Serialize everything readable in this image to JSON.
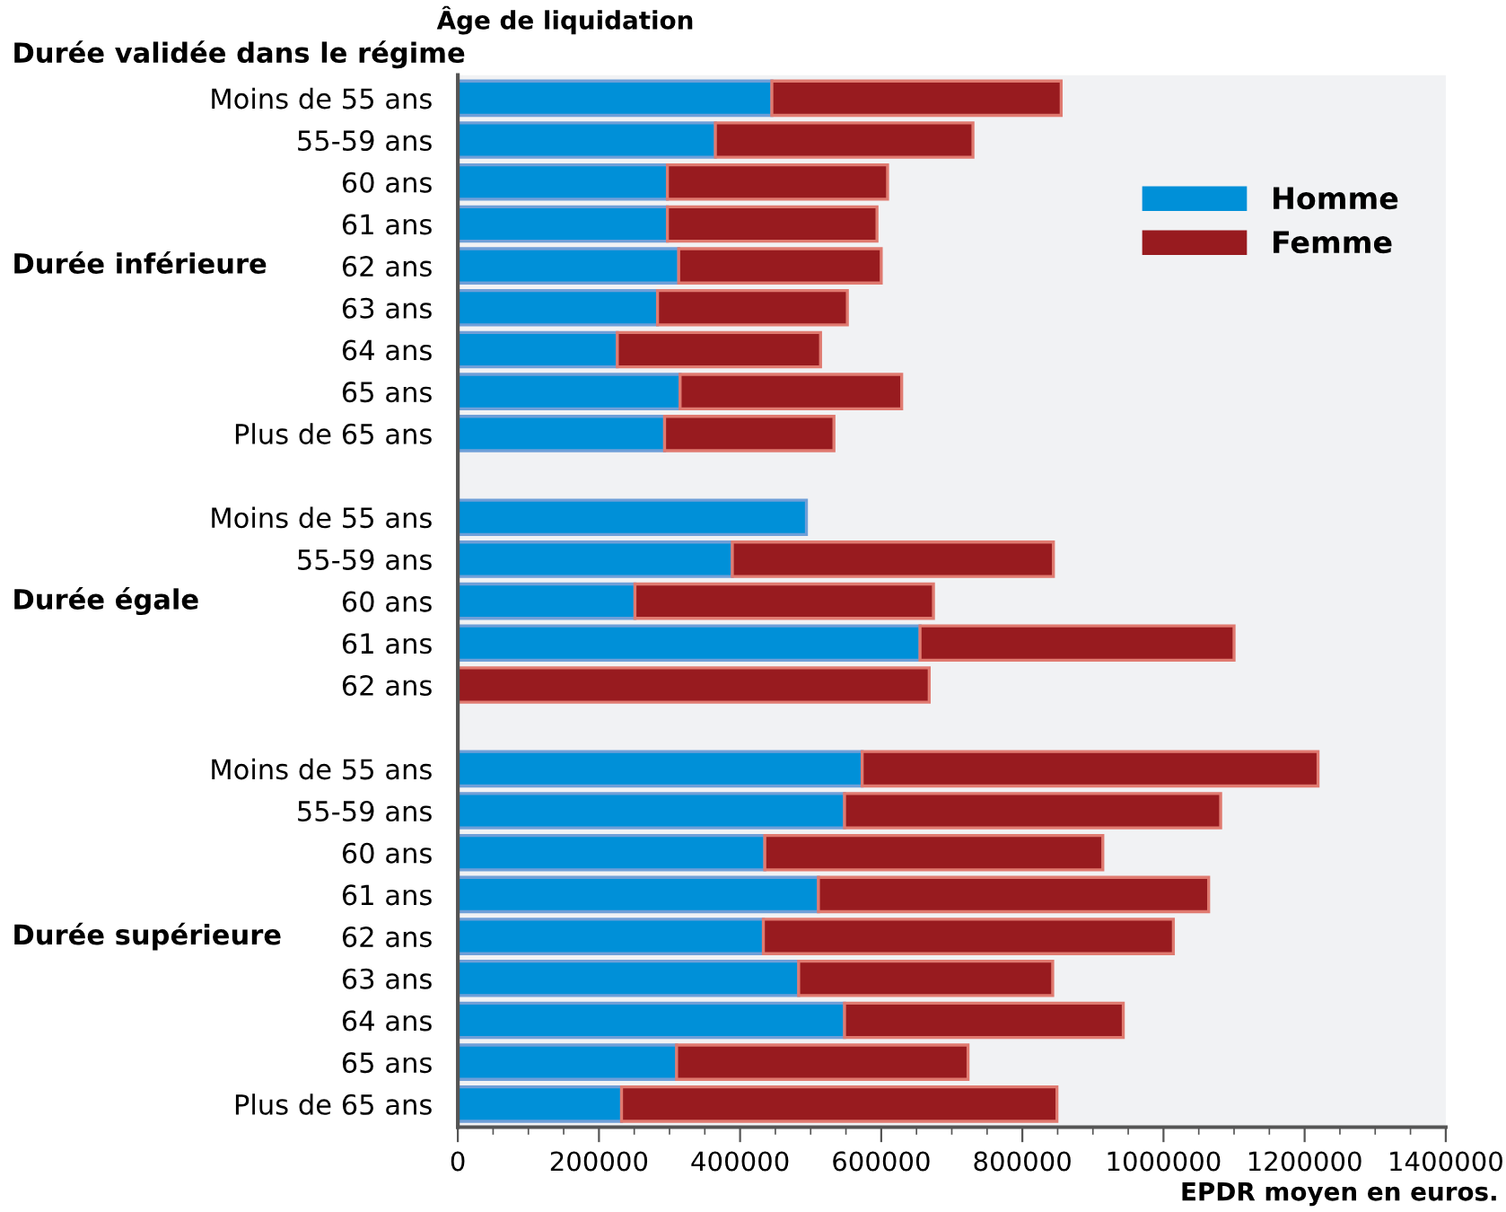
{
  "chart_data": {
    "type": "bar",
    "orientation": "horizontal",
    "stacked": true,
    "ylabel": "Âge de liquidation",
    "xlabel": "EPDR moyen en euros.",
    "annotations": [
      "Durée validée dans le régime",
      "Durée inférieure",
      "Durée égale",
      "Durée supérieure"
    ],
    "categories": [
      "Moins de 55 ans",
      "55-59 ans",
      "60 ans",
      "61 ans",
      "62 ans",
      "63 ans",
      "64 ans",
      "65 ans",
      "Plus de 65 ans",
      null,
      "Moins de 55 ans",
      "55-59 ans",
      "60 ans",
      "61 ans",
      "62 ans",
      null,
      "Moins de 55 ans",
      "55-59 ans",
      "60 ans",
      "61 ans",
      "62 ans",
      "63 ans",
      "64 ans",
      "65 ans",
      "Plus de 65 ans"
    ],
    "series": [
      {
        "name": "Homme",
        "color": "#0090d8",
        "values": [
          445000,
          365000,
          297000,
          297000,
          313000,
          283000,
          226000,
          315000,
          293000,
          null,
          494000,
          389000,
          251000,
          655000,
          null,
          null,
          573000,
          548000,
          435000,
          511000,
          433000,
          483000,
          548000,
          310000,
          232000
        ]
      },
      {
        "name": "Femme",
        "color": "#981b1f",
        "values": [
          410000,
          365000,
          312000,
          297000,
          287000,
          269000,
          288000,
          314000,
          240000,
          null,
          null,
          455000,
          423000,
          445000,
          668000,
          null,
          646000,
          533000,
          479000,
          553000,
          581000,
          360000,
          395000,
          413000,
          617000
        ]
      }
    ],
    "xlim": [
      0,
      1400000
    ],
    "xticks": [
      0,
      {
        "value": 50000,
        "label": null
      },
      {
        "value": 100000,
        "label": null
      },
      {
        "value": 150000,
        "label": null
      },
      200000,
      {
        "value": 250000,
        "label": null
      },
      {
        "value": 300000,
        "label": null
      },
      {
        "value": 350000,
        "label": null
      },
      400000,
      {
        "value": 450000,
        "label": null
      },
      {
        "value": 500000,
        "label": null
      },
      {
        "value": 550000,
        "label": null
      },
      600000,
      {
        "value": 650000,
        "label": null
      },
      {
        "value": 700000,
        "label": null
      },
      {
        "value": 750000,
        "label": null
      },
      800000,
      {
        "value": 850000,
        "label": null
      },
      {
        "value": 900000,
        "label": null
      },
      {
        "value": 950000,
        "label": null
      },
      1000000,
      {
        "value": 1050000,
        "label": null
      },
      {
        "value": 1100000,
        "label": null
      },
      {
        "value": 1150000,
        "label": null
      },
      1200000,
      {
        "value": 1250000,
        "label": null
      },
      {
        "value": 1300000,
        "label": null
      },
      {
        "value": 1350000,
        "label": null
      },
      1400000
    ],
    "grid": false,
    "legend": "top right"
  }
}
